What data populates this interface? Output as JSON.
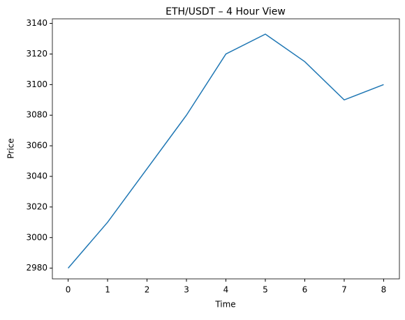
{
  "chart_data": {
    "type": "line",
    "title": "ETH/USDT – 4 Hour View",
    "x_label": "Time",
    "y_label": "Price",
    "x": [
      0,
      1,
      2,
      3,
      4,
      5,
      6,
      7,
      8
    ],
    "series": [
      {
        "name": "ETH/USDT",
        "color": "#1f77b4",
        "values": [
          2980,
          3010,
          3045,
          3080,
          3120,
          3133,
          3115,
          3090,
          3100
        ]
      }
    ],
    "xlim": [
      -0.4,
      8.4
    ],
    "xticks": [
      0,
      1,
      2,
      3,
      4,
      5,
      6,
      7,
      8
    ],
    "ylim": [
      2973,
      3143
    ],
    "yticks": [
      2980,
      3000,
      3020,
      3040,
      3060,
      3080,
      3100,
      3120,
      3140
    ]
  }
}
